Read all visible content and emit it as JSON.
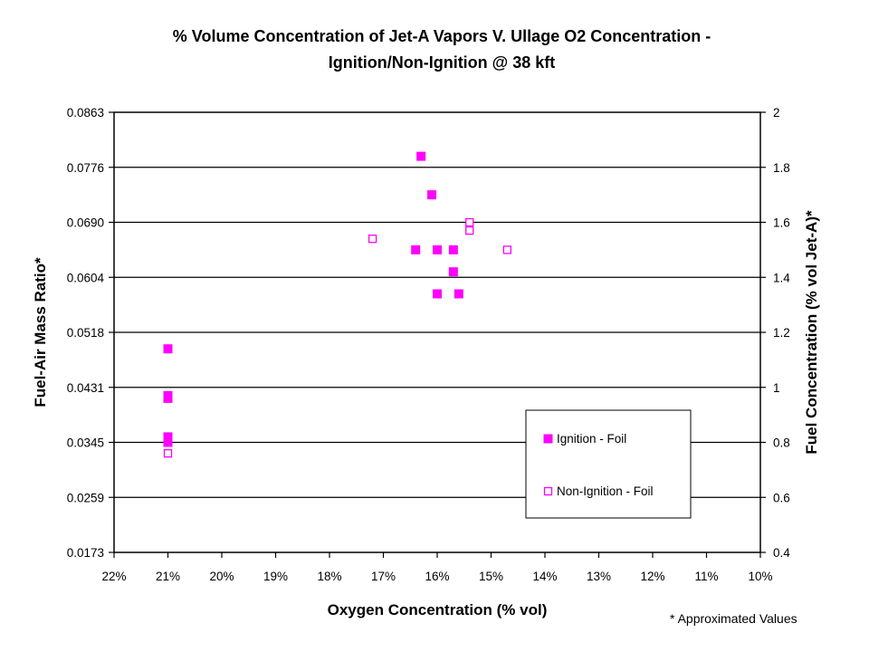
{
  "chart_data": {
    "type": "scatter",
    "title": "% Volume Concentration of Jet-A Vapors V. Ullage O2 Concentration -",
    "subtitle": "Ignition/Non-Ignition @ 38 kft",
    "xlabel": "Oxygen Concentration (% vol)",
    "ylabel": "Fuel-Air Mass Ratio*",
    "y2label": "Fuel Concentration (% vol Jet-A)*",
    "x_reversed": true,
    "xlim": [
      22,
      10
    ],
    "x_ticks": [
      22,
      21,
      20,
      19,
      18,
      17,
      16,
      15,
      14,
      13,
      12,
      11,
      10
    ],
    "x_tick_labels": [
      "22%",
      "21%",
      "20%",
      "19%",
      "18%",
      "17%",
      "16%",
      "15%",
      "14%",
      "13%",
      "12%",
      "11%",
      "10%"
    ],
    "y2lim": [
      0.4,
      2.0
    ],
    "y2_ticks": [
      0.4,
      0.6,
      0.8,
      1.0,
      1.2,
      1.4,
      1.6,
      1.8,
      2.0
    ],
    "y2_tick_labels": [
      "0.4",
      "0.6",
      "0.8",
      "1",
      "1.2",
      "1.4",
      "1.6",
      "1.8",
      "2"
    ],
    "ylim": [
      0.0173,
      0.0863
    ],
    "y_tick_labels": [
      "0.0173",
      "0.0259",
      "0.0345",
      "0.0431",
      "0.0518",
      "0.0604",
      "0.0690",
      "0.0776",
      "0.0863"
    ],
    "grid": "horizontal",
    "legend_position": "lower-right",
    "series": [
      {
        "name": "Ignition - Foil",
        "marker": "filled-square",
        "color": "#ff00ff",
        "points": [
          {
            "x": 21.0,
            "y": 1.14
          },
          {
            "x": 21.0,
            "y": 0.97
          },
          {
            "x": 21.0,
            "y": 0.96
          },
          {
            "x": 21.0,
            "y": 0.82
          },
          {
            "x": 21.0,
            "y": 0.8
          },
          {
            "x": 16.3,
            "y": 1.84
          },
          {
            "x": 16.1,
            "y": 1.7
          },
          {
            "x": 16.4,
            "y": 1.5
          },
          {
            "x": 16.0,
            "y": 1.5
          },
          {
            "x": 15.7,
            "y": 1.5
          },
          {
            "x": 15.7,
            "y": 1.42
          },
          {
            "x": 16.0,
            "y": 1.34
          },
          {
            "x": 15.6,
            "y": 1.34
          }
        ]
      },
      {
        "name": "Non-Ignition - Foil",
        "marker": "open-square",
        "color": "#ff00ff",
        "points": [
          {
            "x": 21.0,
            "y": 0.76
          },
          {
            "x": 17.2,
            "y": 1.54
          },
          {
            "x": 15.4,
            "y": 1.6
          },
          {
            "x": 15.4,
            "y": 1.57
          },
          {
            "x": 14.7,
            "y": 1.5
          }
        ]
      }
    ],
    "footnote": "* Approximated Values"
  }
}
